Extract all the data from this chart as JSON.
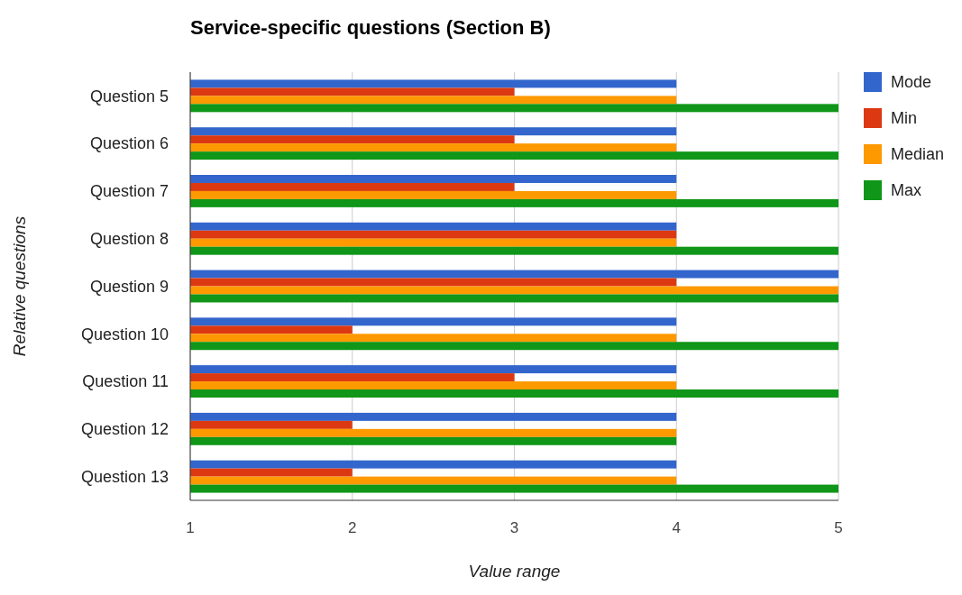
{
  "chart_data": {
    "type": "bar",
    "orientation": "horizontal",
    "title": "Service-specific questions (Section B)",
    "xlabel": "Value range",
    "ylabel": "Relative questions",
    "categories": [
      "Question 5",
      "Question 6",
      "Question 7",
      "Question 8",
      "Question 9",
      "Question 10",
      "Question 11",
      "Question 12",
      "Question 13"
    ],
    "series": [
      {
        "name": "Mode",
        "color": "#3366cc",
        "values": [
          4,
          4,
          4,
          4,
          5,
          4,
          4,
          4,
          4
        ]
      },
      {
        "name": "Min",
        "color": "#dc3912",
        "values": [
          3,
          3,
          3,
          4,
          4,
          2,
          3,
          2,
          2
        ]
      },
      {
        "name": "Median",
        "color": "#ff9900",
        "values": [
          4,
          4,
          4,
          4,
          5,
          4,
          4,
          4,
          4
        ]
      },
      {
        "name": "Max",
        "color": "#109618",
        "values": [
          5,
          5,
          5,
          5,
          5,
          5,
          5,
          4,
          5
        ]
      }
    ],
    "xlim": [
      1,
      5
    ],
    "xticks": [
      1,
      2,
      3,
      4,
      5
    ],
    "grid": "x",
    "legend": "top right"
  }
}
